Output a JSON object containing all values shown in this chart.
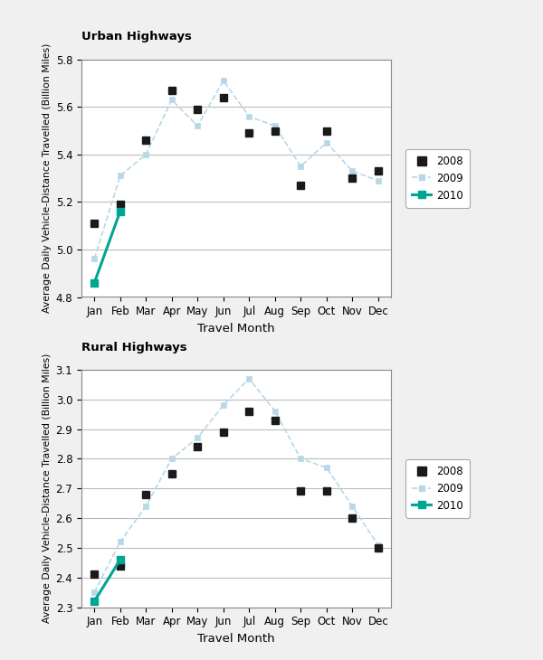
{
  "months": [
    "Jan",
    "Feb",
    "Mar",
    "Apr",
    "May",
    "Jun",
    "Jul",
    "Aug",
    "Sep",
    "Oct",
    "Nov",
    "Dec"
  ],
  "urban": {
    "panel_title": "Urban Highways",
    "ylabel": "Average Daily Vehicle-Distance Travelled (Billion Miles)",
    "xlabel": "Travel Month",
    "ylim": [
      4.8,
      5.8
    ],
    "yticks": [
      4.8,
      5.0,
      5.2,
      5.4,
      5.6,
      5.8
    ],
    "data_2008": [
      5.11,
      5.19,
      5.46,
      5.67,
      5.59,
      5.64,
      5.49,
      5.5,
      5.27,
      5.5,
      5.3,
      5.33
    ],
    "data_2009": [
      4.96,
      5.31,
      5.4,
      5.63,
      5.52,
      5.71,
      5.56,
      5.52,
      5.35,
      5.45,
      5.33,
      5.29
    ],
    "data_2010": [
      4.86,
      5.16,
      null,
      null,
      null,
      null,
      null,
      null,
      null,
      null,
      null,
      null
    ]
  },
  "rural": {
    "panel_title": "Rural Highways",
    "ylabel": "Average Daily Vehicle-Distance Travelled (Billion Miles)",
    "xlabel": "Travel Month",
    "ylim": [
      2.3,
      3.1
    ],
    "yticks": [
      2.3,
      2.4,
      2.5,
      2.6,
      2.7,
      2.8,
      2.9,
      3.0,
      3.1
    ],
    "data_2008": [
      2.41,
      2.44,
      2.68,
      2.75,
      2.84,
      2.89,
      2.96,
      2.93,
      2.69,
      2.69,
      2.6,
      2.5
    ],
    "data_2009": [
      2.35,
      2.52,
      2.64,
      2.8,
      2.87,
      2.98,
      3.07,
      2.96,
      2.8,
      2.77,
      2.64,
      2.51
    ],
    "data_2010": [
      2.32,
      2.46,
      null,
      null,
      null,
      null,
      null,
      null,
      null,
      null,
      null,
      null
    ]
  },
  "color_2008": "#1a1a1a",
  "color_2009": "#b8d8e8",
  "color_2010": "#00a693",
  "bg_color": "#f0f0f0",
  "plot_bg": "#ffffff"
}
